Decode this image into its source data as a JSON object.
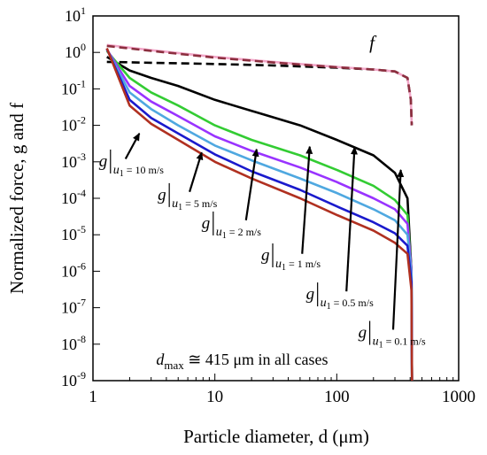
{
  "chart_data": {
    "type": "line",
    "x_scale": "log",
    "y_scale": "log",
    "xlim": [
      1,
      1000
    ],
    "ylim": [
      1e-09,
      10
    ],
    "xlabel": "Particle diameter, d (μm)",
    "ylabel": "Normalized force, g and f",
    "x_ticks": [
      "1",
      "10",
      "100",
      "1000"
    ],
    "y_ticks": [
      {
        "base": "10",
        "exp": "-9"
      },
      {
        "base": "10",
        "exp": "-8"
      },
      {
        "base": "10",
        "exp": "-7"
      },
      {
        "base": "10",
        "exp": "-6"
      },
      {
        "base": "10",
        "exp": "-5"
      },
      {
        "base": "10",
        "exp": "-4"
      },
      {
        "base": "10",
        "exp": "-3"
      },
      {
        "base": "10",
        "exp": "-2"
      },
      {
        "base": "10",
        "exp": "-1"
      },
      {
        "base": "10",
        "exp": "0"
      },
      {
        "base": "10",
        "exp": "1"
      }
    ],
    "grid": false,
    "annotation": "dmax ≅ 415 μm in all cases",
    "series": [
      {
        "label": "f",
        "color": "#000000",
        "dash": true,
        "x": [
          1.3,
          3,
          10,
          30,
          100,
          200,
          300,
          380,
          405,
          412
        ],
        "y": [
          0.55,
          0.52,
          0.48,
          0.44,
          0.38,
          0.34,
          0.3,
          0.2,
          0.05,
          0.01
        ]
      },
      {
        "label": "f",
        "color": "#f2a6c8",
        "dash": false,
        "x": [
          1.3,
          3,
          10,
          30,
          100,
          200,
          300,
          380,
          405,
          412
        ],
        "y": [
          1.6,
          1.15,
          0.75,
          0.55,
          0.4,
          0.34,
          0.3,
          0.2,
          0.05,
          0.01
        ]
      },
      {
        "label": "f",
        "color": "#8c2f3f",
        "dash": true,
        "x": [
          1.3,
          3,
          10,
          30,
          100,
          200,
          300,
          380,
          405,
          412
        ],
        "y": [
          1.5,
          1.1,
          0.72,
          0.53,
          0.39,
          0.34,
          0.3,
          0.2,
          0.05,
          0.01
        ]
      },
      {
        "label": "g|u1 = 0.1 m/s",
        "color": "#000000",
        "dash": false,
        "x": [
          1.3,
          2,
          3,
          5,
          10,
          20,
          50,
          100,
          200,
          300,
          380,
          410,
          414
        ],
        "y": [
          0.75,
          0.32,
          0.2,
          0.12,
          0.05,
          0.025,
          0.01,
          0.004,
          0.0015,
          0.0005,
          0.0001,
          1e-06,
          1e-09
        ]
      },
      {
        "label": "g|u1 = 0.5 m/s",
        "color": "#33cc33",
        "dash": false,
        "x": [
          1.3,
          2,
          3,
          5,
          10,
          20,
          50,
          100,
          200,
          300,
          380,
          410,
          414
        ],
        "y": [
          1.1,
          0.2,
          0.08,
          0.035,
          0.01,
          0.004,
          0.0015,
          0.0006,
          0.00022,
          9e-05,
          3.5e-05,
          1e-06,
          1e-09
        ]
      },
      {
        "label": "g|u1 = 1 m/s",
        "color": "#9933ff",
        "dash": false,
        "x": [
          1.3,
          2,
          3,
          5,
          10,
          20,
          50,
          100,
          200,
          300,
          380,
          410,
          414
        ],
        "y": [
          1.2,
          0.12,
          0.045,
          0.018,
          0.005,
          0.002,
          0.0007,
          0.00028,
          0.0001,
          5e-05,
          2e-05,
          1e-06,
          1e-09
        ]
      },
      {
        "label": "g|u1 = 2 m/s",
        "color": "#4fa8e0",
        "dash": false,
        "x": [
          1.3,
          2,
          3,
          5,
          10,
          20,
          50,
          100,
          200,
          300,
          380,
          410,
          414
        ],
        "y": [
          1.2,
          0.08,
          0.028,
          0.01,
          0.0028,
          0.0011,
          0.00035,
          0.00014,
          5e-05,
          2.5e-05,
          1e-05,
          8e-07,
          1e-09
        ]
      },
      {
        "label": "g|u1 = 5 m/s",
        "color": "#1a1acc",
        "dash": false,
        "x": [
          1.3,
          2,
          3,
          5,
          10,
          20,
          50,
          100,
          200,
          300,
          380,
          410,
          414
        ],
        "y": [
          1.25,
          0.05,
          0.016,
          0.006,
          0.0016,
          0.00055,
          0.00017,
          6e-05,
          2.2e-05,
          1.1e-05,
          5e-06,
          5e-07,
          1e-09
        ]
      },
      {
        "label": "g|u1 = 10 m/s",
        "color": "#b03020",
        "dash": false,
        "x": [
          1.3,
          2,
          3,
          5,
          10,
          20,
          50,
          100,
          200,
          300,
          380,
          410,
          414
        ],
        "y": [
          1.3,
          0.035,
          0.011,
          0.004,
          0.001,
          0.00035,
          0.0001,
          3.5e-05,
          1.3e-05,
          6e-06,
          3e-06,
          3e-07,
          1e-09
        ]
      }
    ],
    "labels": {
      "f": "f",
      "g": "g",
      "u_sub": "1",
      "speeds": [
        "= 10 m/s",
        "= 5 m/s",
        "= 2 m/s",
        "= 1 m/s",
        "= 0.5 m/s",
        "= 0.1 m/s"
      ]
    }
  }
}
